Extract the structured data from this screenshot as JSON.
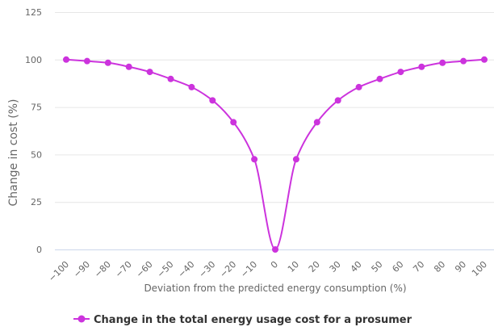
{
  "chart_data": {
    "type": "line",
    "title": "",
    "xlabel": "Deviation from the predicted energy consumption (%)",
    "ylabel": "Change in cost (%)",
    "xlim": [
      -100,
      100
    ],
    "ylim": [
      0,
      125
    ],
    "x_ticks": [
      "−100",
      "−90",
      "−80",
      "−70",
      "−60",
      "−50",
      "−40",
      "−30",
      "−20",
      "−10",
      "0",
      "10",
      "20",
      "30",
      "40",
      "50",
      "60",
      "70",
      "80",
      "90",
      "100"
    ],
    "y_ticks": [
      "0",
      "25",
      "50",
      "75",
      "100",
      "125"
    ],
    "grid": true,
    "legend_position": "bottom",
    "series": [
      {
        "name": "Change in the total energy usage cost for a prosumer",
        "color": "#cc33dd",
        "x": [
          -100,
          -90,
          -80,
          -70,
          -60,
          -50,
          -40,
          -30,
          -20,
          -10,
          0,
          10,
          20,
          30,
          40,
          50,
          60,
          70,
          80,
          90,
          100
        ],
        "y": [
          100,
          99.2,
          98.3,
          96.2,
          93.5,
          89.8,
          85.5,
          78.5,
          67,
          47.5,
          0,
          47.5,
          67,
          78.5,
          85.5,
          89.8,
          93.5,
          96.2,
          98.3,
          99.2,
          100
        ]
      }
    ]
  }
}
